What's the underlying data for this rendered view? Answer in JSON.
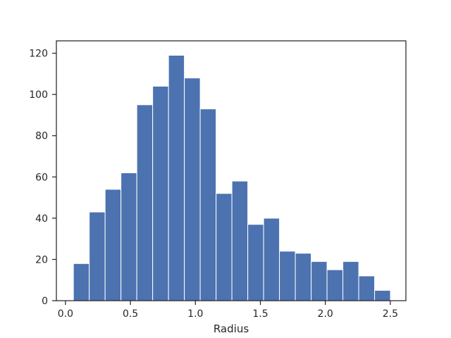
{
  "chart_data": {
    "type": "bar",
    "xlabel": "Radius",
    "ylabel": "",
    "title": "",
    "xlim": [
      -0.07,
      2.62
    ],
    "ylim": [
      0,
      126
    ],
    "x_ticks": [
      "0.0",
      "0.5",
      "1.0",
      "1.5",
      "2.0",
      "2.5"
    ],
    "y_ticks": [
      "0",
      "20",
      "40",
      "60",
      "80",
      "100",
      "120"
    ],
    "grid": false,
    "bar_color": "#4c72b0",
    "bins": [
      {
        "x0": 0.061,
        "x1": 0.183,
        "count": 18
      },
      {
        "x0": 0.183,
        "x1": 0.305,
        "count": 43
      },
      {
        "x0": 0.305,
        "x1": 0.427,
        "count": 54
      },
      {
        "x0": 0.427,
        "x1": 0.549,
        "count": 62
      },
      {
        "x0": 0.549,
        "x1": 0.671,
        "count": 95
      },
      {
        "x0": 0.671,
        "x1": 0.793,
        "count": 104
      },
      {
        "x0": 0.793,
        "x1": 0.915,
        "count": 119
      },
      {
        "x0": 0.915,
        "x1": 1.037,
        "count": 108
      },
      {
        "x0": 1.037,
        "x1": 1.159,
        "count": 93
      },
      {
        "x0": 1.159,
        "x1": 1.281,
        "count": 52
      },
      {
        "x0": 1.281,
        "x1": 1.403,
        "count": 58
      },
      {
        "x0": 1.403,
        "x1": 1.525,
        "count": 37
      },
      {
        "x0": 1.525,
        "x1": 1.647,
        "count": 40
      },
      {
        "x0": 1.647,
        "x1": 1.769,
        "count": 24
      },
      {
        "x0": 1.769,
        "x1": 1.891,
        "count": 23
      },
      {
        "x0": 1.891,
        "x1": 2.013,
        "count": 19
      },
      {
        "x0": 2.013,
        "x1": 2.135,
        "count": 15
      },
      {
        "x0": 2.135,
        "x1": 2.257,
        "count": 19
      },
      {
        "x0": 2.257,
        "x1": 2.379,
        "count": 12
      },
      {
        "x0": 2.379,
        "x1": 2.501,
        "count": 5
      }
    ]
  }
}
